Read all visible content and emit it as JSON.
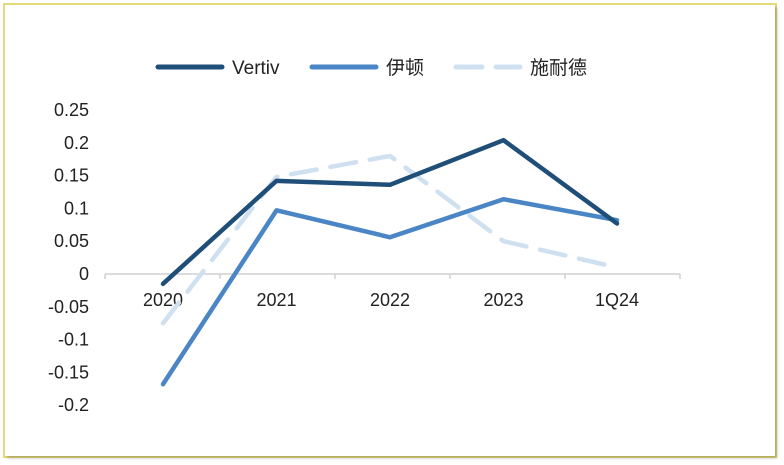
{
  "chart_data": {
    "type": "line",
    "title": "",
    "xlabel": "",
    "ylabel": "",
    "categories": [
      "2020",
      "2021",
      "2022",
      "2023",
      "1Q24"
    ],
    "ylim": [
      -0.2,
      0.25
    ],
    "yticks": [
      "0.25",
      "0.2",
      "0.15",
      "0.1",
      "0.05",
      "0",
      "-0.05",
      "-0.1",
      "-0.15",
      "-0.2"
    ],
    "legend_position": "top",
    "grid": false,
    "series": [
      {
        "name": "Vertiv",
        "values": [
          -0.015,
          0.142,
          0.136,
          0.204,
          0.077
        ],
        "color": "#1f4e79",
        "dash": "solid"
      },
      {
        "name": "伊顿",
        "values": [
          -0.168,
          0.097,
          0.056,
          0.114,
          0.082
        ],
        "color": "#4a86c5",
        "dash": "solid"
      },
      {
        "name": "施耐德",
        "values": [
          -0.075,
          0.148,
          0.18,
          0.05,
          0.01
        ],
        "color": "#cfe0f1",
        "dash": "dashed"
      }
    ]
  }
}
